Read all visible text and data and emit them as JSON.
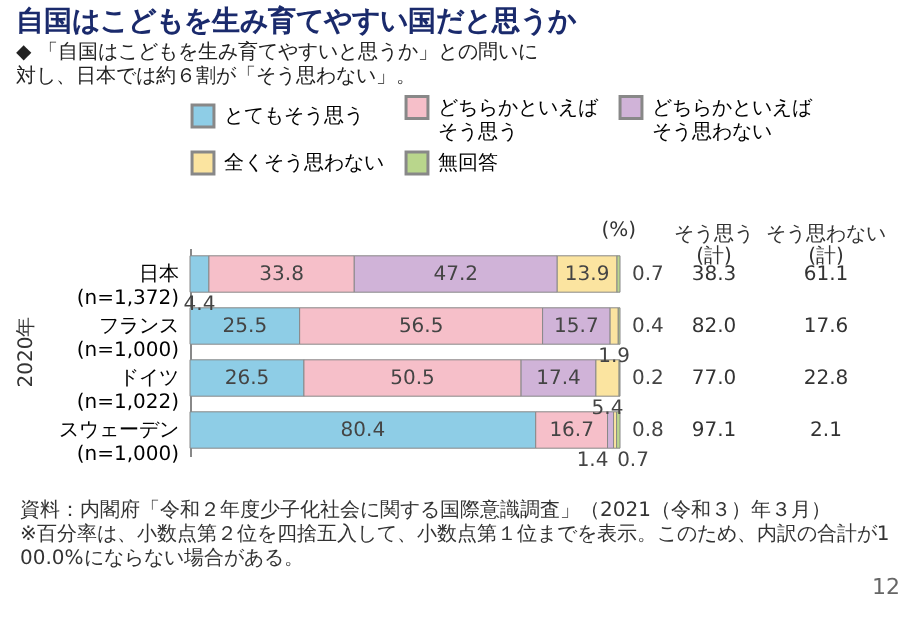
{
  "chart_data": {
    "type": "bar",
    "orientation": "horizontal",
    "stacked": true,
    "data_labels": true,
    "relative": false,
    "title": "自国はこどもを生み育てやすい国だと思うか",
    "subtitle": "◆ 「自国はこどもを生み育てやすいと思うか」との問いに対し、日本では約６割が「そう思わない」。",
    "categories": [
      "日本\n(n=1,372)",
      "フランス\n(n=1,000)",
      "ドイツ\n(n=1,022)",
      "スウェーデン\n(n=1,000)"
    ],
    "series": [
      {
        "name": "とてもそう思う",
        "color": "#8ecde6",
        "values": [
          4.4,
          25.5,
          26.5,
          80.4
        ]
      },
      {
        "name": "どちらかといえばそう思う",
        "color": "#f6bfc9",
        "values": [
          33.8,
          56.5,
          50.5,
          16.7
        ]
      },
      {
        "name": "どちらかといえばそう思わない",
        "color": "#d0b3d8",
        "values": [
          47.2,
          15.7,
          17.4,
          1.4
        ]
      },
      {
        "name": "全くそう思わない",
        "color": "#fbe4a0",
        "values": [
          13.9,
          1.9,
          5.4,
          0.7
        ]
      },
      {
        "name": "無回答",
        "color": "#b9d68c",
        "values": [
          0.7,
          0.4,
          0.2,
          0.8
        ]
      }
    ],
    "legend": "top",
    "grid": false,
    "annotations": [
      "(%)",
      "2020年",
      "そう思う\n(計)",
      "そう思わない\n(計)",
      "38.3",
      "61.1",
      "82.0",
      "17.6",
      "77.0",
      "22.8",
      "97.1",
      "2.1",
      "資料：内閣府「令和２年度少子化社会に関する国際意識調査」（2021（令和３）年３月）",
      "※百分率は、小数点第２位を四捨五入して、小数点第１位までを表示。このため、内訳の合計が100.0%にならない場合がある。",
      "12"
    ]
  }
}
